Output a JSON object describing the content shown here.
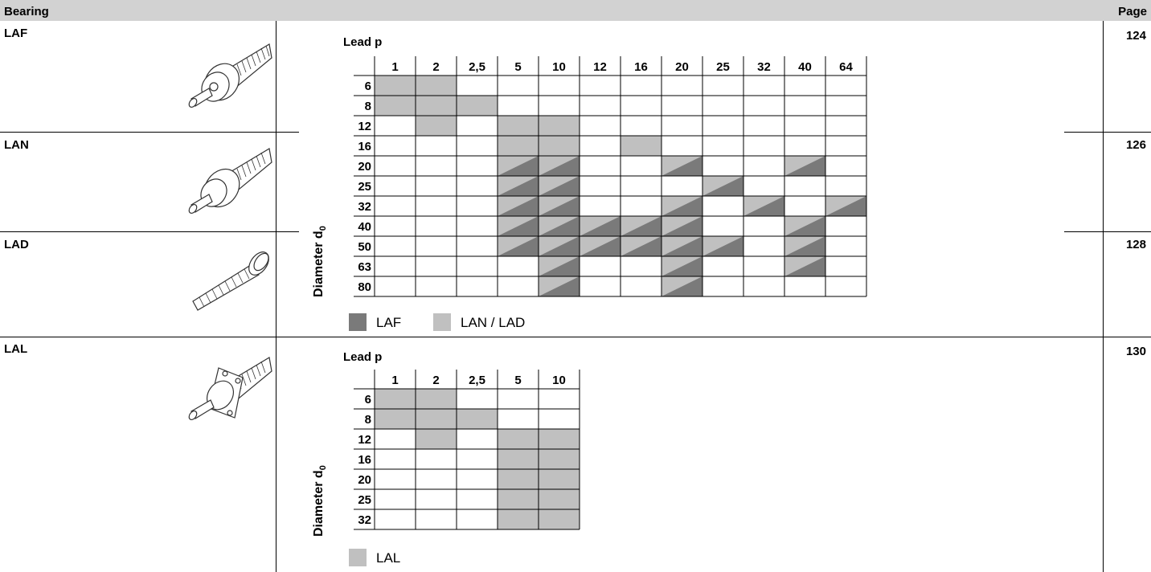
{
  "header": {
    "bearing": "Bearing",
    "page": "Page"
  },
  "rows": [
    {
      "label": "LAF",
      "page": "124",
      "icon": "laf-bearing-illustration"
    },
    {
      "label": "LAN",
      "page": "126",
      "icon": "lan-bearing-illustration"
    },
    {
      "label": "LAD",
      "page": "128",
      "icon": "lad-bearing-illustration"
    },
    {
      "label": "LAL",
      "page": "130",
      "icon": "lal-bearing-illustration"
    }
  ],
  "colors": {
    "laf": "#7a7a7a",
    "lan": "#c0c0c0",
    "header": "#d2d2d2"
  },
  "table1": {
    "lead_title": "Lead p",
    "diameter_title": "Diameter d",
    "diameter_sub": "0",
    "leads": [
      "1",
      "2",
      "2,5",
      "5",
      "10",
      "12",
      "16",
      "20",
      "25",
      "32",
      "40",
      "64"
    ],
    "diameters": [
      "6",
      "8",
      "12",
      "16",
      "20",
      "25",
      "32",
      "40",
      "50",
      "63",
      "80"
    ],
    "cells": [
      [
        "L",
        "L",
        "",
        "",
        "",
        "",
        "",
        "",
        "",
        "",
        "",
        ""
      ],
      [
        "L",
        "L",
        "L",
        "",
        "",
        "",
        "",
        "",
        "",
        "",
        "",
        ""
      ],
      [
        "",
        "L",
        "",
        "L",
        "L",
        "",
        "",
        "",
        "",
        "",
        "",
        ""
      ],
      [
        "",
        "",
        "",
        "L",
        "L",
        "",
        "L",
        "",
        "",
        "",
        "",
        ""
      ],
      [
        "",
        "",
        "",
        "B",
        "B",
        "",
        "",
        "B",
        "",
        "",
        "B",
        ""
      ],
      [
        "",
        "",
        "",
        "B",
        "B",
        "",
        "",
        "",
        "B",
        "",
        "",
        ""
      ],
      [
        "",
        "",
        "",
        "B",
        "B",
        "",
        "",
        "B",
        "",
        "B",
        "",
        "B"
      ],
      [
        "",
        "",
        "",
        "B",
        "B",
        "B",
        "B",
        "B",
        "",
        "",
        "B",
        ""
      ],
      [
        "",
        "",
        "",
        "B",
        "B",
        "B",
        "B",
        "B",
        "B",
        "",
        "B",
        ""
      ],
      [
        "",
        "",
        "",
        "",
        "B",
        "",
        "",
        "B",
        "",
        "",
        "B",
        ""
      ],
      [
        "",
        "",
        "",
        "",
        "B",
        "",
        "",
        "B",
        "",
        "",
        "",
        ""
      ]
    ],
    "legend": [
      {
        "label": "LAF",
        "color": "#7a7a7a"
      },
      {
        "label": "LAN / LAD",
        "color": "#c0c0c0"
      }
    ]
  },
  "table2": {
    "lead_title": "Lead p",
    "diameter_title": "Diameter d",
    "diameter_sub": "0",
    "leads": [
      "1",
      "2",
      "2,5",
      "5",
      "10"
    ],
    "diameters": [
      "6",
      "8",
      "12",
      "16",
      "20",
      "25",
      "32"
    ],
    "cells": [
      [
        "L",
        "L",
        "",
        "",
        ""
      ],
      [
        "L",
        "L",
        "L",
        "",
        ""
      ],
      [
        "",
        "L",
        "",
        "L",
        "L"
      ],
      [
        "",
        "",
        "",
        "L",
        "L"
      ],
      [
        "",
        "",
        "",
        "L",
        "L"
      ],
      [
        "",
        "",
        "",
        "L",
        "L"
      ],
      [
        "",
        "",
        "",
        "L",
        "L"
      ]
    ],
    "legend": [
      {
        "label": "LAL",
        "color": "#c0c0c0"
      }
    ]
  }
}
